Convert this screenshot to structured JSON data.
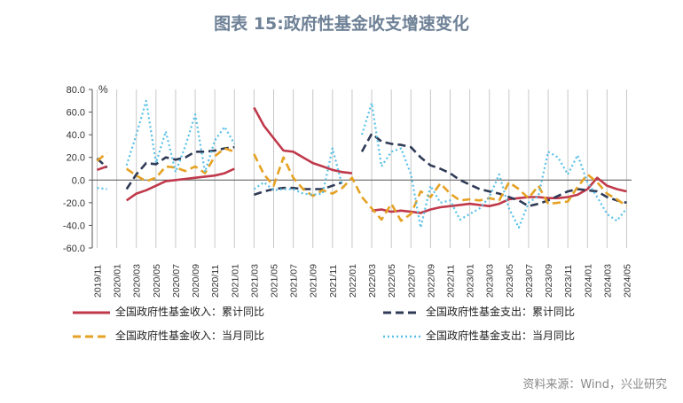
{
  "title": "图表 15:政府性基金收支增速变化",
  "source": "资料来源：Wind，兴业研究",
  "chart_data": {
    "type": "line",
    "unit": "%",
    "ylim": [
      -60,
      80
    ],
    "yticks": [
      "80.0",
      "60.0",
      "40.0",
      "20.0",
      "0.0",
      "-20.0",
      "-40.0",
      "-60.0"
    ],
    "x": [
      "2019/11",
      "2019/12",
      "2020/01",
      "2020/02",
      "2020/03",
      "2020/04",
      "2020/05",
      "2020/06",
      "2020/07",
      "2020/08",
      "2020/09",
      "2020/10",
      "2020/11",
      "2020/12",
      "2021/01",
      "2021/02",
      "2021/03",
      "2021/04",
      "2021/05",
      "2021/06",
      "2021/07",
      "2021/08",
      "2021/09",
      "2021/10",
      "2021/11",
      "2021/12",
      "2022/01",
      "2022/02",
      "2022/03",
      "2022/04",
      "2022/05",
      "2022/06",
      "2022/07",
      "2022/08",
      "2022/09",
      "2022/10",
      "2022/11",
      "2022/12",
      "2023/01",
      "2023/02",
      "2023/03",
      "2023/04",
      "2023/05",
      "2023/06",
      "2023/07",
      "2023/08",
      "2023/09",
      "2023/10",
      "2023/11",
      "2023/12",
      "2024/01",
      "2024/02",
      "2024/03",
      "2024/04",
      "2024/05"
    ],
    "xtick_labels": [
      "2019/11",
      "2020/01",
      "2020/03",
      "2020/05",
      "2020/07",
      "2020/09",
      "2020/11",
      "2021/01",
      "2021/03",
      "2021/05",
      "2021/07",
      "2021/09",
      "2021/11",
      "2022/01",
      "2022/03",
      "2022/05",
      "2022/07",
      "2022/09",
      "2022/11",
      "2023/01",
      "2023/03",
      "2023/05",
      "2023/07",
      "2023/09",
      "2023/11",
      "2024/01",
      "2024/03",
      "2024/05"
    ],
    "grid": "vertical",
    "legend_position": "bottom",
    "series": [
      {
        "name": "全国政府性基金收入：累计同比",
        "color": "#c0394b",
        "style": "solid",
        "values": [
          9,
          12,
          null,
          -18,
          -12,
          -9,
          -5,
          -1,
          0,
          1,
          2,
          3,
          4,
          6,
          10,
          null,
          64,
          48,
          37,
          26,
          25,
          20,
          15,
          12,
          9,
          7,
          6,
          null,
          -27,
          -26,
          -28,
          -27,
          -28,
          -29,
          -26,
          -24,
          -23,
          -22,
          -21,
          -22,
          -23,
          -21,
          -17,
          -16,
          -15,
          -15,
          -16,
          -16,
          -15,
          -13,
          -8,
          2,
          -5,
          -8,
          -10
        ]
      },
      {
        "name": "全国政府性基金支出：累计同比",
        "color": "#2f3b56",
        "style": "dashed",
        "values": [
          19,
          11,
          null,
          -8,
          5,
          15,
          14,
          20,
          18,
          20,
          25,
          25,
          26,
          28,
          29,
          null,
          -13,
          -10,
          -8,
          -7,
          -7,
          -8,
          -8,
          -8,
          -5,
          -2,
          null,
          25,
          41,
          34,
          32,
          31,
          29,
          20,
          13,
          10,
          6,
          0,
          -4,
          -8,
          -10,
          -12,
          -15,
          -18,
          -23,
          -21,
          -18,
          -14,
          -10,
          -8,
          -9,
          -10,
          -15,
          -18,
          -20
        ]
      },
      {
        "name": "全国政府性基金收入：当月同比",
        "color": "#e5a224",
        "style": "dashed",
        "values": [
          17,
          24,
          null,
          10,
          4,
          -1,
          2,
          12,
          11,
          8,
          12,
          6,
          21,
          28,
          25,
          null,
          23,
          5,
          -5,
          20,
          2,
          -8,
          -14,
          -9,
          -12,
          -7,
          2,
          -15,
          -25,
          -35,
          -21,
          -36,
          -30,
          -10,
          -15,
          -3,
          -12,
          -18,
          -17,
          -18,
          -16,
          -18,
          -2,
          -8,
          -16,
          -5,
          -21,
          -20,
          -19,
          -6,
          5,
          -2,
          -12,
          -17,
          -23
        ]
      },
      {
        "name": "全国政府性基金支出：当月同比",
        "color": "#58c0e6",
        "style": "dotted",
        "values": [
          -7,
          -8,
          null,
          13,
          40,
          70,
          15,
          43,
          7,
          30,
          58,
          7,
          35,
          47,
          32,
          null,
          -8,
          -2,
          -9,
          -8,
          -8,
          -12,
          -13,
          -12,
          28,
          -5,
          null,
          40,
          68,
          12,
          25,
          28,
          5,
          -42,
          -5,
          -20,
          -18,
          -35,
          -30,
          -25,
          -15,
          5,
          -25,
          -42,
          -20,
          -14,
          25,
          20,
          5,
          22,
          -2,
          -15,
          -30,
          -36,
          -25
        ]
      }
    ]
  }
}
